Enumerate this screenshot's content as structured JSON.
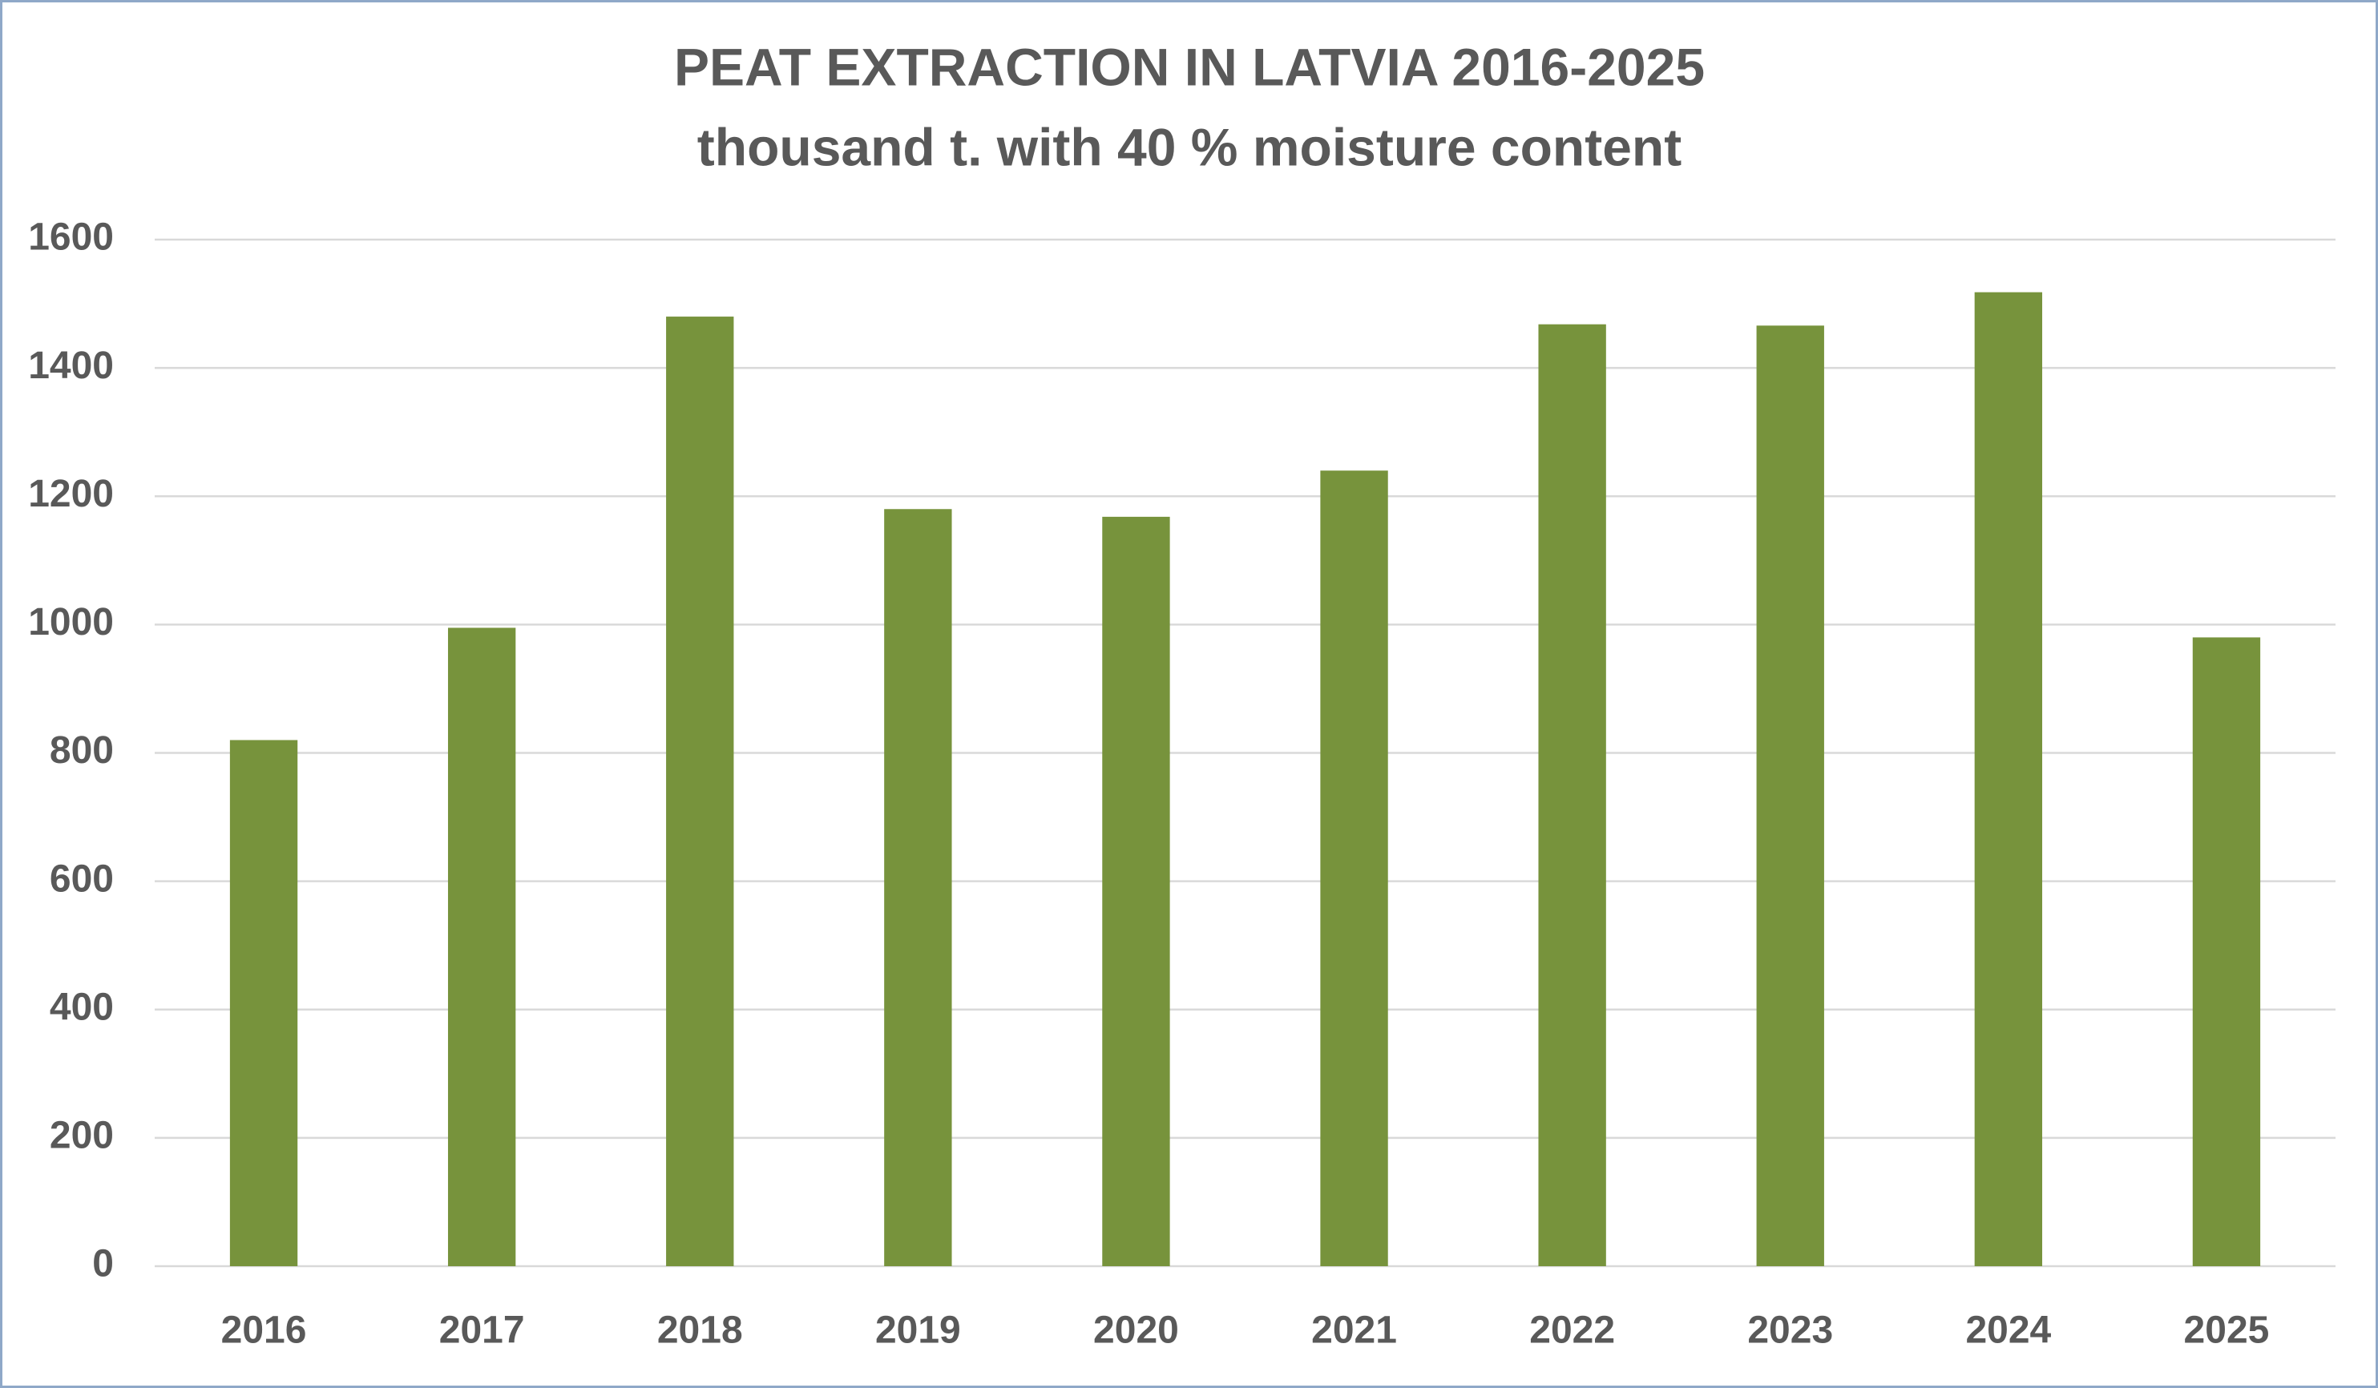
{
  "chart_data": {
    "type": "bar",
    "title": "PEAT EXTRACTION IN LATVIA 2016-2025",
    "subtitle": "thousand t. with 40 % moisture content",
    "categories": [
      "2016",
      "2017",
      "2018",
      "2019",
      "2020",
      "2021",
      "2022",
      "2023",
      "2024",
      "2025"
    ],
    "values": [
      820,
      995,
      1480,
      1180,
      1168,
      1240,
      1468,
      1466,
      1518,
      980
    ],
    "color": "#77933c",
    "ylim": [
      0,
      1600
    ],
    "yticks": [
      0,
      200,
      400,
      600,
      800,
      1000,
      1200,
      1400,
      1600
    ],
    "grid": true
  }
}
